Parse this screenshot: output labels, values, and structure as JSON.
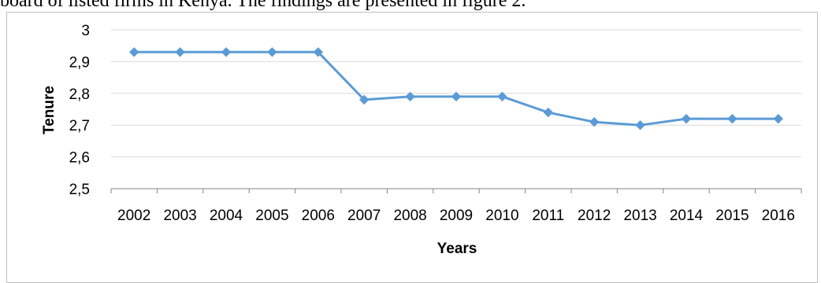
{
  "document": {
    "caption_text": "board of listed firms in Kenya. The findings are presented in figure 2."
  },
  "chart_data": {
    "type": "line",
    "title": "",
    "xlabel": "Years",
    "ylabel": "Tenure",
    "categories": [
      "2002",
      "2003",
      "2004",
      "2005",
      "2006",
      "2007",
      "2008",
      "2009",
      "2010",
      "2011",
      "2012",
      "2013",
      "2014",
      "2015",
      "2016"
    ],
    "values": [
      2.93,
      2.93,
      2.93,
      2.93,
      2.93,
      2.78,
      2.79,
      2.79,
      2.79,
      2.74,
      2.71,
      2.7,
      2.72,
      2.72,
      2.72
    ],
    "ylim": [
      2.5,
      3.0
    ],
    "yticks": [
      2.5,
      2.6,
      2.7,
      2.8,
      2.9,
      3.0
    ],
    "ytick_labels": [
      "2,5",
      "2,6",
      "2,7",
      "2,8",
      "2,9",
      "3"
    ],
    "grid": true,
    "legend": "none",
    "colors": {
      "line": "#5b9bd5",
      "marker": "#5b9bd5",
      "grid": "#d9d9d9",
      "axis": "#868686"
    },
    "marker": "diamond"
  }
}
